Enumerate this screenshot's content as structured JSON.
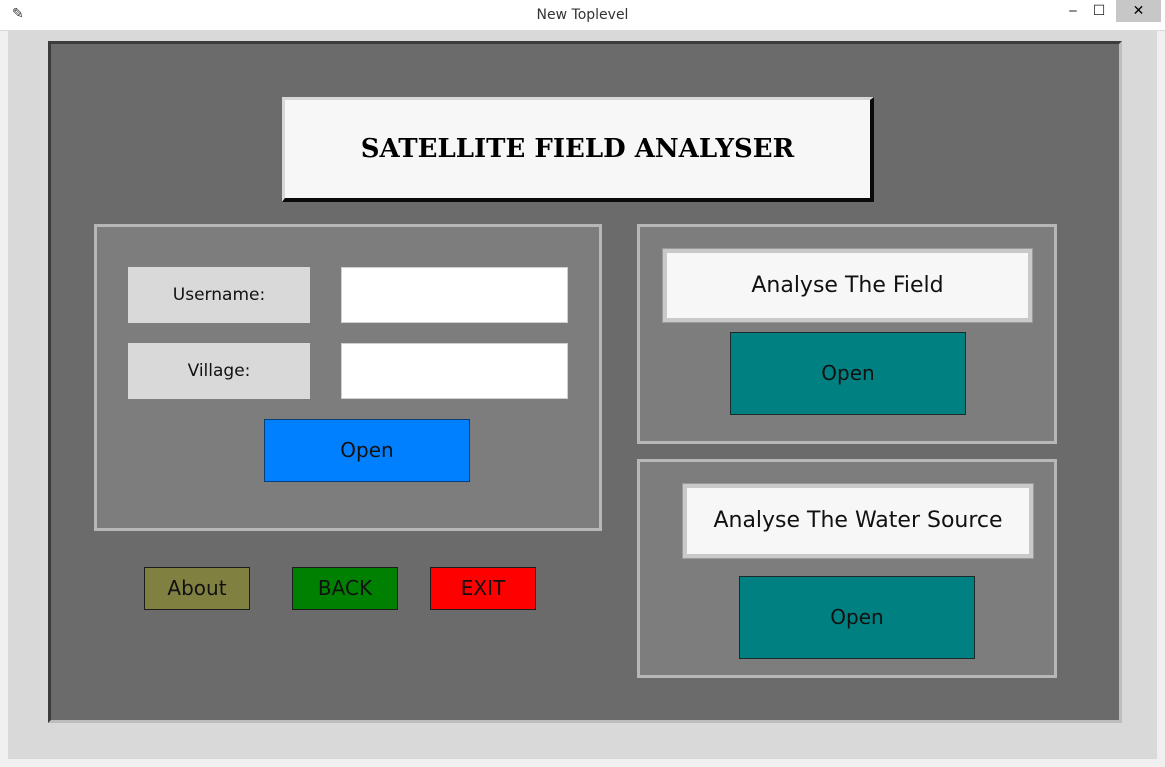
{
  "window": {
    "title": "New Toplevel",
    "app_icon": "feather-icon",
    "min_glyph": "‒",
    "max_glyph": "☐",
    "close_glyph": "✕"
  },
  "header": {
    "title": "SATELLITE FIELD ANALYSER"
  },
  "login": {
    "username_label": "Username:",
    "username_value": "",
    "village_label": "Village:",
    "village_value": "",
    "open_label": "Open"
  },
  "field_panel": {
    "title": "Analyse The Field",
    "open_label": "Open"
  },
  "water_panel": {
    "title": "Analyse The Water Source",
    "open_label": "Open"
  },
  "footer": {
    "about_label": "About",
    "back_label": "BACK",
    "exit_label": "EXIT"
  },
  "colors": {
    "open_blue": "#007fff",
    "open_teal": "#008080",
    "about_olive": "#808040",
    "back_green": "#008000",
    "exit_red": "#ff0000",
    "frame_gray": "#6b6b6b",
    "panel_gray": "#7d7d7d"
  }
}
